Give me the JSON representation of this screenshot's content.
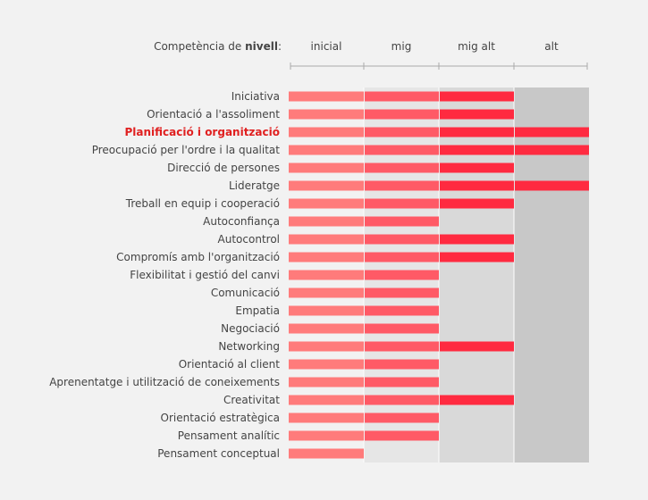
{
  "chart_data": {
    "type": "bar",
    "orientation": "horizontal",
    "header": {
      "prefix": "Competència de ",
      "bold": "nivell",
      "suffix": ":"
    },
    "levels": [
      "inicial",
      "mig",
      "mig alt",
      "alt"
    ],
    "categories": [
      "Iniciativa",
      "Orientació a l'assoliment",
      "Planificació i organització",
      "Preocupació per l'ordre i la qualitat",
      "Direcció de persones",
      "Lideratge",
      "Treball en equip i cooperació",
      "Autoconfiança",
      "Autocontrol",
      "Compromís amb l'organització",
      "Flexibilitat i gestió del canvi",
      "Comunicació",
      "Empatia",
      "Negociació",
      "Networking",
      "Orientació al client",
      "Aprenentatge i utilització de coneixements",
      "Creativitat",
      "Orientació estratègica",
      "Pensament analític",
      "Pensament conceptual"
    ],
    "values": [
      3,
      3,
      4,
      4,
      3,
      4,
      3,
      2,
      3,
      3,
      2,
      2,
      2,
      2,
      3,
      2,
      2,
      3,
      2,
      2,
      1
    ],
    "highlight_index": 2,
    "xlim": [
      0,
      4
    ],
    "colors": {
      "background": "#f2f2f2",
      "band_light": "#e6e6e6",
      "band_mid": "#d9d9d9",
      "band_dark": "#c8c8c8",
      "bar_level_1": "#ff7b7b",
      "bar_level_2": "#ff5a66",
      "bar_level_3_plus": "#ff2a40",
      "highlight_text": "#e02020",
      "text": "#444444",
      "axis": "#aaaaaa"
    }
  }
}
